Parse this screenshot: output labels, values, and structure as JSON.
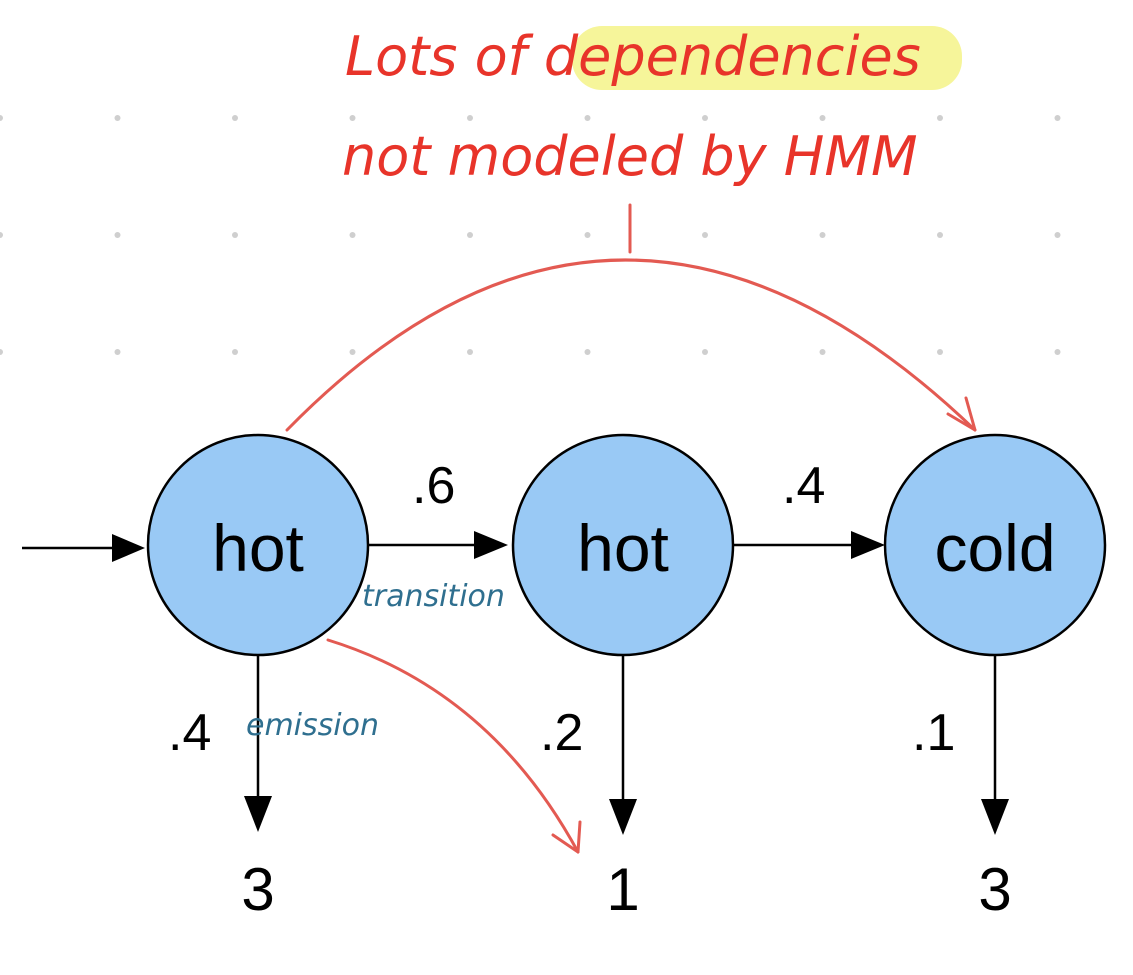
{
  "annotation": {
    "line1_prefix": "Lots of ",
    "line1_highlight": "dependencies",
    "line2": "not modeled by HMM",
    "color": "#e8342a",
    "highlight_color": "#f6f59a"
  },
  "notes": {
    "transition": "transition",
    "emission": "emission",
    "color": "#2f6f8f"
  },
  "nodes": [
    {
      "label": "hot"
    },
    {
      "label": "hot"
    },
    {
      "label": "cold"
    }
  ],
  "transitions": [
    ".6",
    ".4"
  ],
  "emission_probs": [
    ".4",
    ".2",
    ".1"
  ],
  "observations": [
    "3",
    "1",
    "3"
  ],
  "colors": {
    "node_fill": "#99c9f5",
    "edge": "#000000",
    "red_arrow": "#e35a52"
  }
}
